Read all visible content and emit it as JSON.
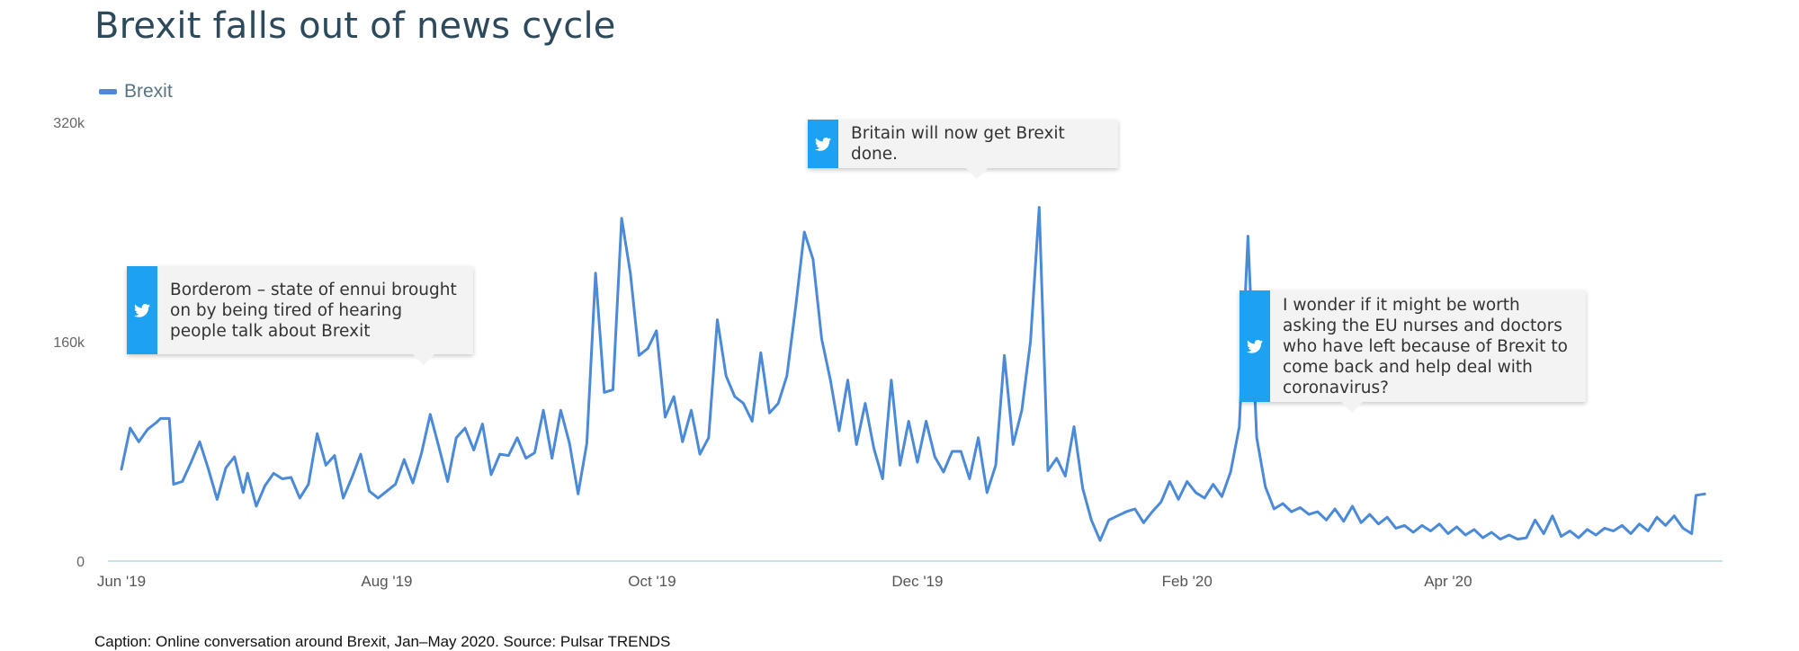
{
  "page": {
    "title": "Brexit falls out of news cycle",
    "caption": "Caption: Online conversation around Brexit, Jan–May 2020. Source: Pulsar TRENDS"
  },
  "colors": {
    "line": "#4a8ad8",
    "title": "#2c4a5c",
    "twitter": "#1da1f2",
    "axis": "#b9d7de"
  },
  "legend": {
    "label": "Brexit",
    "icon": "line-swatch"
  },
  "callouts": [
    {
      "icon": "twitter-bird-icon",
      "text": "Borderom – state of ennui brought on by being tired of hearing people talk about Brexit"
    },
    {
      "icon": "twitter-bird-icon",
      "text": "Britain will now get Brexit done."
    },
    {
      "icon": "twitter-bird-icon",
      "text": "I wonder if it might be worth asking the EU nurses and doctors who have left because of Brexit to come back and help deal with coronavirus?"
    }
  ],
  "chart_data": {
    "type": "line",
    "title": "Brexit falls out of news cycle",
    "xlabel": "",
    "ylabel": "",
    "ylim": [
      0,
      320000
    ],
    "y_ticks": [
      0,
      160000,
      320000
    ],
    "y_tick_labels": [
      "0",
      "160k",
      "320k"
    ],
    "x_ticks": [
      "2019-06-01",
      "2019-08-01",
      "2019-10-01",
      "2019-12-01",
      "2020-02-01",
      "2020-04-01"
    ],
    "x_tick_labels": [
      "Jun '19",
      "Aug '19",
      "Oct '19",
      "Dec '19",
      "Feb '20",
      "Apr '20"
    ],
    "x_range": [
      "2019-06-01",
      "2020-05-31"
    ],
    "grid": false,
    "legend_position": "top-left",
    "series": [
      {
        "name": "Brexit",
        "points": [
          [
            "2019-06-01",
            67000
          ],
          [
            "2019-06-03",
            97000
          ],
          [
            "2019-06-05",
            87000
          ],
          [
            "2019-06-07",
            96000
          ],
          [
            "2019-06-09",
            101000
          ],
          [
            "2019-06-10",
            104000
          ],
          [
            "2019-06-12",
            104000
          ],
          [
            "2019-06-13",
            56000
          ],
          [
            "2019-06-15",
            58000
          ],
          [
            "2019-06-17",
            72000
          ],
          [
            "2019-06-19",
            87000
          ],
          [
            "2019-06-21",
            67000
          ],
          [
            "2019-06-23",
            45000
          ],
          [
            "2019-06-25",
            68000
          ],
          [
            "2019-06-27",
            76000
          ],
          [
            "2019-06-29",
            50000
          ],
          [
            "2019-06-30",
            64000
          ],
          [
            "2019-07-02",
            40000
          ],
          [
            "2019-07-04",
            55000
          ],
          [
            "2019-07-06",
            64000
          ],
          [
            "2019-07-08",
            60000
          ],
          [
            "2019-07-10",
            61000
          ],
          [
            "2019-07-12",
            46000
          ],
          [
            "2019-07-14",
            56000
          ],
          [
            "2019-07-16",
            93000
          ],
          [
            "2019-07-18",
            70000
          ],
          [
            "2019-07-20",
            77000
          ],
          [
            "2019-07-22",
            46000
          ],
          [
            "2019-07-24",
            61000
          ],
          [
            "2019-07-26",
            78000
          ],
          [
            "2019-07-28",
            51000
          ],
          [
            "2019-07-30",
            46000
          ],
          [
            "2019-08-01",
            51000
          ],
          [
            "2019-08-03",
            56000
          ],
          [
            "2019-08-05",
            74000
          ],
          [
            "2019-08-07",
            57000
          ],
          [
            "2019-08-09",
            79000
          ],
          [
            "2019-08-11",
            107000
          ],
          [
            "2019-08-13",
            83000
          ],
          [
            "2019-08-15",
            58000
          ],
          [
            "2019-08-17",
            90000
          ],
          [
            "2019-08-19",
            97000
          ],
          [
            "2019-08-21",
            81000
          ],
          [
            "2019-08-23",
            100000
          ],
          [
            "2019-08-25",
            63000
          ],
          [
            "2019-08-27",
            78000
          ],
          [
            "2019-08-29",
            77000
          ],
          [
            "2019-08-31",
            90000
          ],
          [
            "2019-09-02",
            75000
          ],
          [
            "2019-09-04",
            79000
          ],
          [
            "2019-09-06",
            110000
          ],
          [
            "2019-09-08",
            75000
          ],
          [
            "2019-09-10",
            110000
          ],
          [
            "2019-09-12",
            86000
          ],
          [
            "2019-09-14",
            49000
          ],
          [
            "2019-09-16",
            86000
          ],
          [
            "2019-09-18",
            210000
          ],
          [
            "2019-09-20",
            123000
          ],
          [
            "2019-09-22",
            125000
          ],
          [
            "2019-09-24",
            250000
          ],
          [
            "2019-09-26",
            210000
          ],
          [
            "2019-09-28",
            150000
          ],
          [
            "2019-09-30",
            155000
          ],
          [
            "2019-10-02",
            168000
          ],
          [
            "2019-10-04",
            105000
          ],
          [
            "2019-10-06",
            120000
          ],
          [
            "2019-10-08",
            87000
          ],
          [
            "2019-10-10",
            110000
          ],
          [
            "2019-10-12",
            78000
          ],
          [
            "2019-10-14",
            90000
          ],
          [
            "2019-10-16",
            176000
          ],
          [
            "2019-10-18",
            135000
          ],
          [
            "2019-10-20",
            120000
          ],
          [
            "2019-10-22",
            115000
          ],
          [
            "2019-10-24",
            102000
          ],
          [
            "2019-10-26",
            152000
          ],
          [
            "2019-10-28",
            108000
          ],
          [
            "2019-10-30",
            115000
          ],
          [
            "2019-11-01",
            135000
          ],
          [
            "2019-11-03",
            185000
          ],
          [
            "2019-11-05",
            240000
          ],
          [
            "2019-11-07",
            220000
          ],
          [
            "2019-11-09",
            162000
          ],
          [
            "2019-11-11",
            132000
          ],
          [
            "2019-11-13",
            95000
          ],
          [
            "2019-11-15",
            132000
          ],
          [
            "2019-11-17",
            85000
          ],
          [
            "2019-11-19",
            115000
          ],
          [
            "2019-11-21",
            82000
          ],
          [
            "2019-11-23",
            60000
          ],
          [
            "2019-11-25",
            132000
          ],
          [
            "2019-11-27",
            70000
          ],
          [
            "2019-11-29",
            102000
          ],
          [
            "2019-12-01",
            72000
          ],
          [
            "2019-12-03",
            102000
          ],
          [
            "2019-12-05",
            76000
          ],
          [
            "2019-12-07",
            65000
          ],
          [
            "2019-12-09",
            80000
          ],
          [
            "2019-12-11",
            80000
          ],
          [
            "2019-12-13",
            60000
          ],
          [
            "2019-12-15",
            90000
          ],
          [
            "2019-12-17",
            50000
          ],
          [
            "2019-12-19",
            70000
          ],
          [
            "2019-12-21",
            150000
          ],
          [
            "2019-12-23",
            85000
          ],
          [
            "2019-12-25",
            110000
          ],
          [
            "2019-12-27",
            160000
          ],
          [
            "2019-12-29",
            258000
          ],
          [
            "2019-12-31",
            66000
          ],
          [
            "2020-01-02",
            75000
          ],
          [
            "2020-01-04",
            62000
          ],
          [
            "2020-01-06",
            98000
          ],
          [
            "2020-01-08",
            53000
          ],
          [
            "2020-01-10",
            30000
          ],
          [
            "2020-01-12",
            15000
          ],
          [
            "2020-01-14",
            30000
          ],
          [
            "2020-01-16",
            33000
          ],
          [
            "2020-01-18",
            36000
          ],
          [
            "2020-01-20",
            38000
          ],
          [
            "2020-01-22",
            28000
          ],
          [
            "2020-01-24",
            36000
          ],
          [
            "2020-01-26",
            43000
          ],
          [
            "2020-01-28",
            58000
          ],
          [
            "2020-01-30",
            45000
          ],
          [
            "2020-02-01",
            58000
          ],
          [
            "2020-02-03",
            50000
          ],
          [
            "2020-02-05",
            46000
          ],
          [
            "2020-02-07",
            56000
          ],
          [
            "2020-02-09",
            47000
          ],
          [
            "2020-02-11",
            65000
          ],
          [
            "2020-02-13",
            98000
          ],
          [
            "2020-02-15",
            237000
          ],
          [
            "2020-02-17",
            90000
          ],
          [
            "2020-02-19",
            54000
          ],
          [
            "2020-02-21",
            38000
          ],
          [
            "2020-02-23",
            42000
          ],
          [
            "2020-02-25",
            36000
          ],
          [
            "2020-02-27",
            39000
          ],
          [
            "2020-02-29",
            34000
          ],
          [
            "2020-03-02",
            36000
          ],
          [
            "2020-03-04",
            30000
          ],
          [
            "2020-03-06",
            38000
          ],
          [
            "2020-03-08",
            29000
          ],
          [
            "2020-03-10",
            40000
          ],
          [
            "2020-03-12",
            28000
          ],
          [
            "2020-03-14",
            34000
          ],
          [
            "2020-03-16",
            27000
          ],
          [
            "2020-03-18",
            32000
          ],
          [
            "2020-03-20",
            24000
          ],
          [
            "2020-03-22",
            26000
          ],
          [
            "2020-03-24",
            21000
          ],
          [
            "2020-03-26",
            26000
          ],
          [
            "2020-03-28",
            22000
          ],
          [
            "2020-03-30",
            27000
          ],
          [
            "2020-04-01",
            20000
          ],
          [
            "2020-04-03",
            25000
          ],
          [
            "2020-04-05",
            19000
          ],
          [
            "2020-04-07",
            23000
          ],
          [
            "2020-04-09",
            17000
          ],
          [
            "2020-04-11",
            21000
          ],
          [
            "2020-04-13",
            16000
          ],
          [
            "2020-04-15",
            19000
          ],
          [
            "2020-04-17",
            16000
          ],
          [
            "2020-04-19",
            17000
          ],
          [
            "2020-04-21",
            30000
          ],
          [
            "2020-04-23",
            20000
          ],
          [
            "2020-04-25",
            33000
          ],
          [
            "2020-04-27",
            18000
          ],
          [
            "2020-04-29",
            22000
          ],
          [
            "2020-05-01",
            17000
          ],
          [
            "2020-05-03",
            23000
          ],
          [
            "2020-05-05",
            19000
          ],
          [
            "2020-05-07",
            24000
          ],
          [
            "2020-05-09",
            22000
          ],
          [
            "2020-05-11",
            26000
          ],
          [
            "2020-05-13",
            20000
          ],
          [
            "2020-05-15",
            27000
          ],
          [
            "2020-05-17",
            22000
          ],
          [
            "2020-05-19",
            32000
          ],
          [
            "2020-05-21",
            26000
          ],
          [
            "2020-05-23",
            33000
          ],
          [
            "2020-05-25",
            24000
          ],
          [
            "2020-05-27",
            20000
          ],
          [
            "2020-05-28",
            48000
          ],
          [
            "2020-05-30",
            49000
          ]
        ]
      }
    ]
  }
}
